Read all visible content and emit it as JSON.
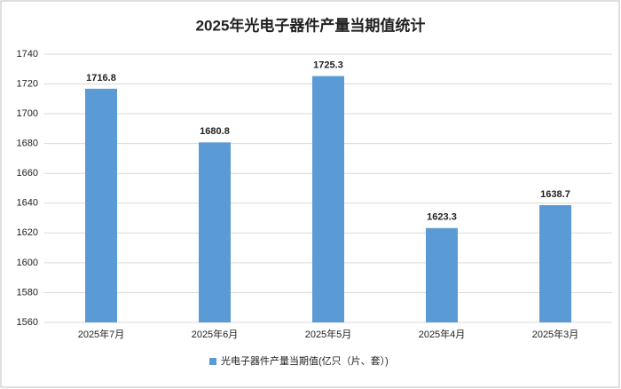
{
  "chart_data": {
    "type": "bar",
    "title": "2025年光电子器件产量当期值统计",
    "categories": [
      "2025年7月",
      "2025年6月",
      "2025年5月",
      "2025年4月",
      "2025年3月"
    ],
    "series": [
      {
        "name": "光电子器件产量当期值(亿只（片、套）)",
        "color": "#5b9bd5",
        "values": [
          1716.8,
          1680.8,
          1725.3,
          1623.3,
          1638.7
        ]
      }
    ],
    "ylim": [
      1560,
      1740
    ],
    "yticks": [
      1560,
      1580,
      1600,
      1620,
      1640,
      1660,
      1680,
      1700,
      1720,
      1740
    ],
    "grid": true,
    "legend": "bottom"
  }
}
